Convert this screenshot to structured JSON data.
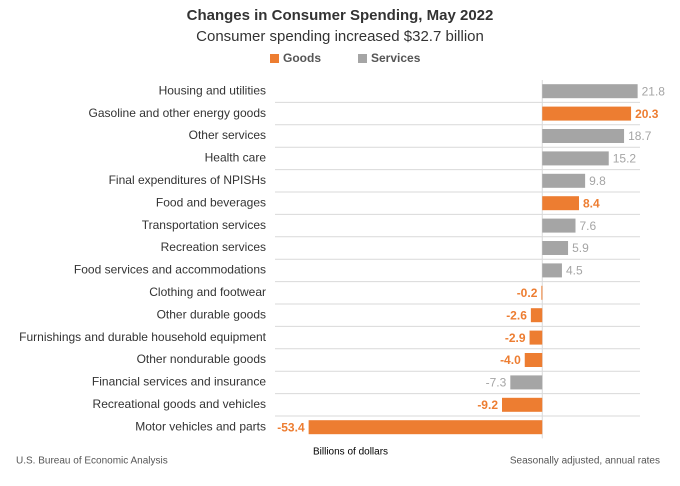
{
  "chart_data": {
    "type": "bar",
    "orientation": "horizontal",
    "title": "Changes in Consumer Spending, May 2022",
    "subtitle": "Consumer spending increased $32.7 billion",
    "x_label": "Billions of dollars",
    "source": "U.S. Bureau of Economic Analysis",
    "note": "Seasonally adjusted, annual rates",
    "categories": [
      "Housing and utilities",
      "Gasoline and other energy goods",
      "Other services",
      "Health care",
      "Final expenditures of NPISHs",
      "Food and beverages",
      "Transportation services",
      "Recreation services",
      "Food services and accommodations",
      "Clothing and footwear",
      "Other durable goods",
      "Furnishings and durable household equipment",
      "Other nondurable goods",
      "Financial services and insurance",
      "Recreational goods and vehicles",
      "Motor vehicles and parts"
    ],
    "series": [
      {
        "name": "Goods",
        "color": "#ed7d31",
        "values": [
          null,
          20.3,
          null,
          null,
          null,
          8.4,
          null,
          null,
          null,
          -0.2,
          -2.6,
          -2.9,
          -4.0,
          null,
          -9.2,
          -53.4
        ],
        "value_labels": [
          null,
          "20.3",
          null,
          null,
          null,
          "8.4",
          null,
          null,
          null,
          "-0.2",
          "-2.6",
          "-2.9",
          "-4.0",
          null,
          "-9.2",
          "-53.4"
        ]
      },
      {
        "name": "Services",
        "color": "#a5a5a5",
        "values": [
          21.8,
          null,
          18.7,
          15.2,
          9.8,
          null,
          7.6,
          5.9,
          4.5,
          null,
          null,
          null,
          null,
          -7.3,
          null,
          null
        ],
        "value_labels": [
          "21.8",
          null,
          "18.7",
          "15.2",
          "9.8",
          null,
          "7.6",
          "5.9",
          "4.5",
          null,
          null,
          null,
          null,
          "-7.3",
          null,
          null
        ]
      }
    ],
    "xlim": [
      -54,
      22
    ]
  }
}
